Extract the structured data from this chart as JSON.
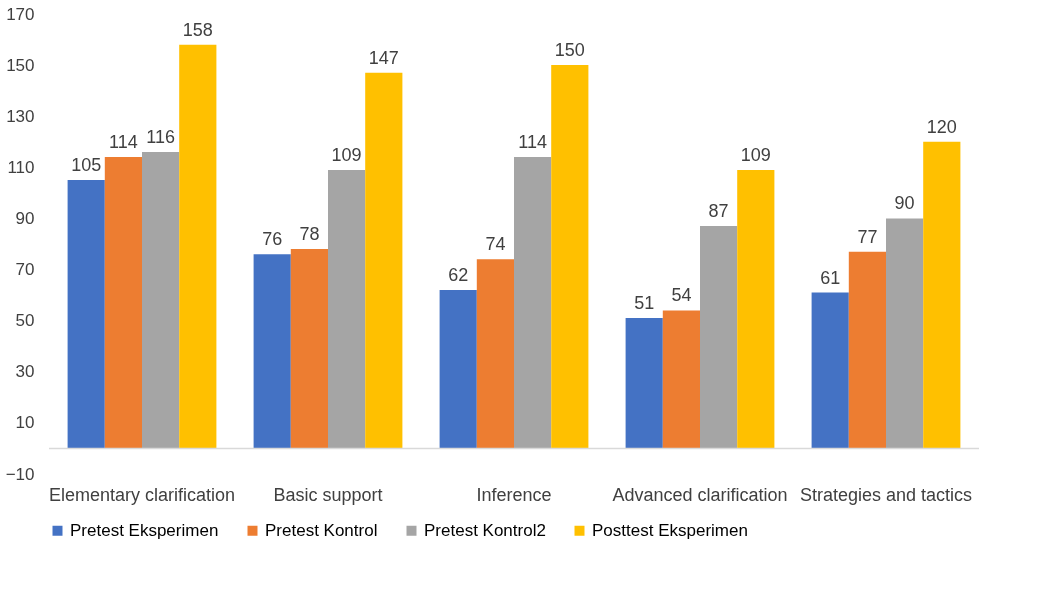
{
  "chart_data": {
    "type": "bar",
    "categories": [
      "Elementary clarification",
      "Basic support",
      "Inference",
      "Advanced clarification",
      "Strategies and tactics"
    ],
    "series": [
      {
        "name": "Pretest Eksperimen",
        "color": "#4472c4",
        "values": [
          105,
          76,
          62,
          51,
          61
        ]
      },
      {
        "name": "Pretest Kontrol",
        "color": "#ed7d31",
        "values": [
          114,
          78,
          74,
          54,
          77
        ]
      },
      {
        "name": "Pretest Kontrol2",
        "color": "#a5a5a5",
        "values": [
          116,
          109,
          114,
          87,
          90
        ]
      },
      {
        "name": "Posttest Eksperimen",
        "color": "#ffc000",
        "values": [
          158,
          147,
          150,
          109,
          120
        ]
      }
    ],
    "ylim": [
      -10,
      170
    ],
    "yticks": [
      -10,
      10,
      30,
      50,
      70,
      90,
      110,
      130,
      150,
      170
    ],
    "data_labels": true,
    "grid": false,
    "legend": "bottom"
  }
}
